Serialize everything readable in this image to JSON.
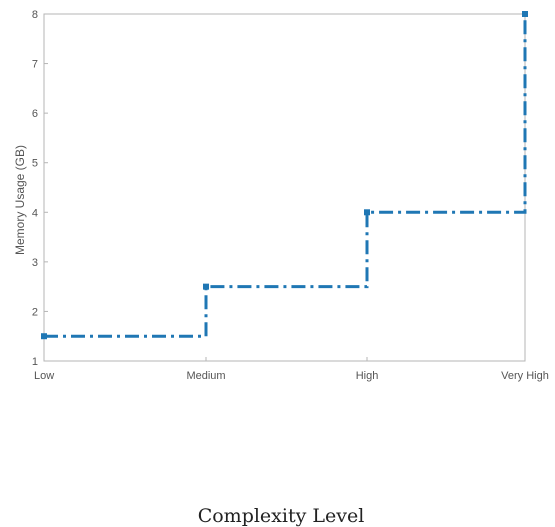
{
  "chart_data": {
    "type": "line",
    "step": "post",
    "categories": [
      "Low",
      "Medium",
      "High",
      "Very High"
    ],
    "series": [
      {
        "values": [
          1.5,
          2.5,
          4,
          8
        ],
        "color": "#1f77b4",
        "line_style": "dash-dot",
        "marker": "square"
      }
    ],
    "xlabel": "Complexity Level",
    "ylabel": "Memory Usage (GB)",
    "ylim": [
      1,
      8
    ],
    "yticks": [
      1,
      2,
      3,
      4,
      5,
      6,
      7,
      8
    ],
    "grid": false,
    "box": true
  }
}
